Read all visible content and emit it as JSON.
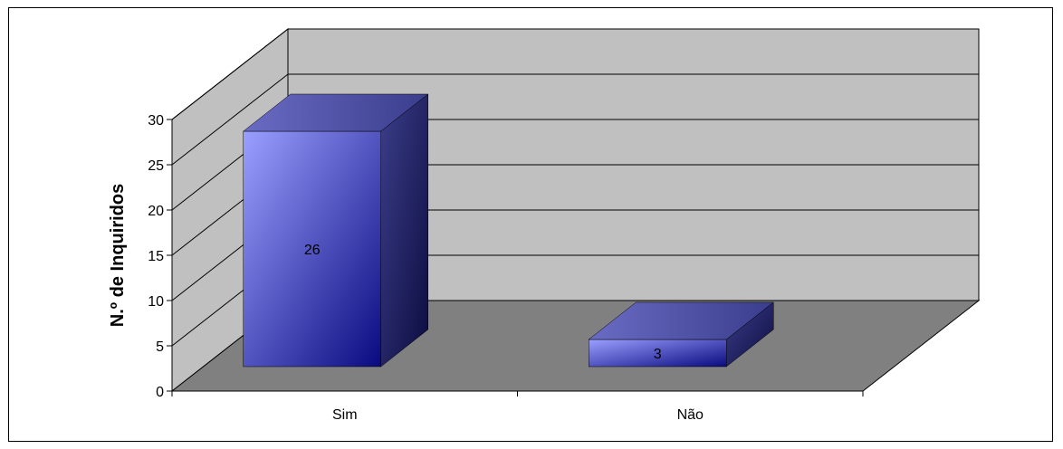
{
  "chart_data": {
    "type": "bar",
    "categories": [
      "Sim",
      "Não"
    ],
    "values": [
      26,
      3
    ],
    "ylabel": "N.º de Inquiridos",
    "ylim": [
      0,
      30
    ],
    "yticks": [
      0,
      5,
      10,
      15,
      20,
      25,
      30
    ],
    "grid": true,
    "three_d": true,
    "colors": {
      "bar_front_light": "#9aa0ff",
      "bar_front_dark": "#0a0a80",
      "bar_top": "#5a5cb0",
      "bar_side": "#20215e",
      "back_wall": "#c0c0c0",
      "side_wall": "#c0c0c0",
      "floor": "#808080"
    }
  }
}
